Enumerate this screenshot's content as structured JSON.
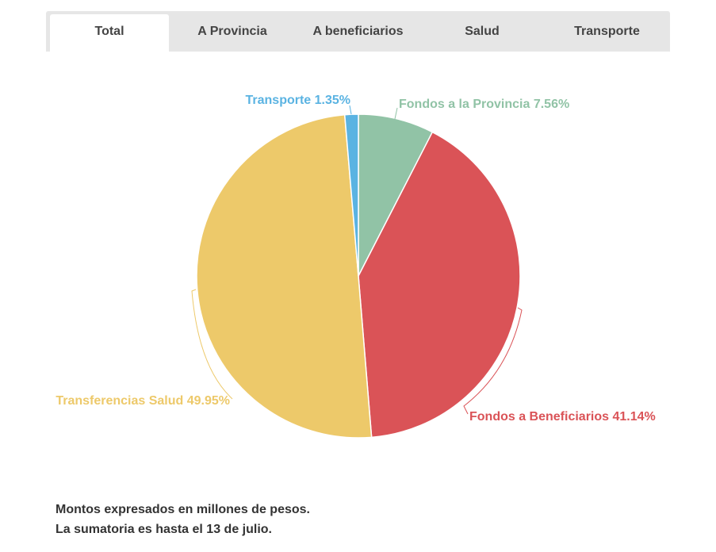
{
  "tabs": [
    {
      "label": "Total",
      "active": true
    },
    {
      "label": "A Provincia",
      "active": false
    },
    {
      "label": "A beneficiarios",
      "active": false
    },
    {
      "label": "Salud",
      "active": false
    },
    {
      "label": "Transporte",
      "active": false
    }
  ],
  "chart_data": {
    "type": "pie",
    "title": "",
    "slices": [
      {
        "label": "Fondos a la Provincia",
        "value": 7.56,
        "display": "Fondos a la Provincia 7.56%",
        "color": "#91c3a6"
      },
      {
        "label": "Fondos a Beneficiarios",
        "value": 41.14,
        "display": "Fondos a Beneficiarios 41.14%",
        "color": "#da5357"
      },
      {
        "label": "Transferencias Salud",
        "value": 49.95,
        "display": "Transferencias Salud 49.95%",
        "color": "#edc96a"
      },
      {
        "label": "Transporte",
        "value": 1.35,
        "display": "Transporte 1.35%",
        "color": "#5ab3e2"
      }
    ]
  },
  "footnotes": {
    "line1": "Montos expresados en millones de pesos.",
    "line2": "La sumatoria es hasta el 13 de julio."
  }
}
